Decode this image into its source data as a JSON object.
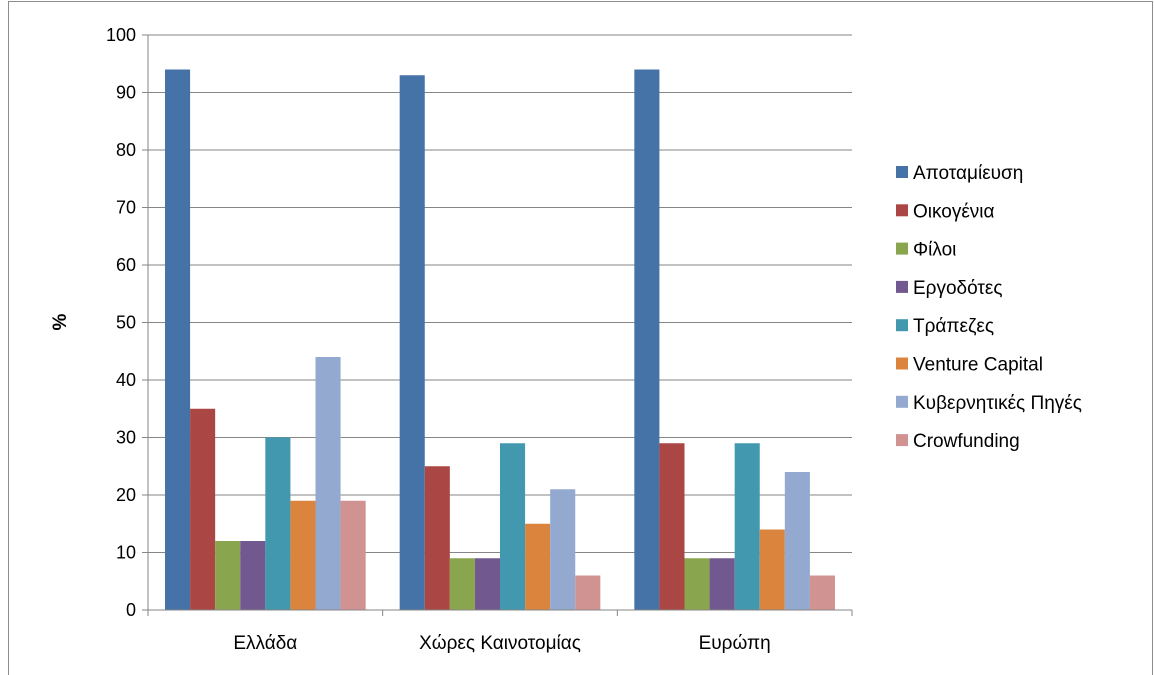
{
  "chart_data": {
    "type": "bar",
    "title": "",
    "xlabel": "",
    "ylabel": "%",
    "ylim": [
      0,
      100
    ],
    "yticks": [
      0,
      10,
      20,
      30,
      40,
      50,
      60,
      70,
      80,
      90,
      100
    ],
    "grid": true,
    "legend_position": "right",
    "categories": [
      "Ελλάδα",
      "Χώρες Καινοτομίας",
      "Ευρώπη"
    ],
    "series": [
      {
        "name": "Αποταμίευση",
        "color": "#4572A7",
        "values": [
          94,
          93,
          94
        ]
      },
      {
        "name": "Οικογένια",
        "color": "#AA4643",
        "values": [
          35,
          25,
          29
        ]
      },
      {
        "name": "Φίλοι",
        "color": "#89A54E",
        "values": [
          12,
          9,
          9
        ]
      },
      {
        "name": "Εργοδότες",
        "color": "#71588F",
        "values": [
          12,
          9,
          9
        ]
      },
      {
        "name": "Τράπεζες",
        "color": "#4198AF",
        "values": [
          30,
          29,
          29
        ]
      },
      {
        "name": "Venture Capital",
        "color": "#DB843D",
        "values": [
          19,
          15,
          14
        ]
      },
      {
        "name": "Κυβερνητικές Πηγές",
        "color": "#93A9CF",
        "values": [
          44,
          21,
          24
        ]
      },
      {
        "name": "Crowfunding",
        "color": "#D19392",
        "values": [
          19,
          6,
          6
        ]
      }
    ]
  }
}
